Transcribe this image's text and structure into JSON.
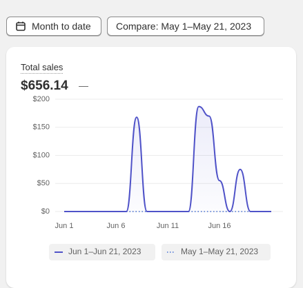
{
  "toolbar": {
    "date_button": "Month to date",
    "compare_button": "Compare: May 1–May 21, 2023"
  },
  "card": {
    "metric_label": "Total sales",
    "metric_value": "$656.14",
    "metric_change": "—"
  },
  "chart_data": {
    "type": "line",
    "categories": [
      "Jun 1",
      null,
      null,
      null,
      null,
      "Jun 6",
      null,
      null,
      null,
      null,
      "Jun 11",
      null,
      null,
      null,
      null,
      "Jun 16",
      null,
      null,
      null,
      null,
      null
    ],
    "series": [
      {
        "name": "Jun 1–Jun 21, 2023",
        "color": "#4f52c8",
        "style": "solid",
        "values": [
          0,
          0,
          0,
          0,
          0,
          0,
          0,
          168,
          0,
          0,
          0,
          0,
          0,
          187,
          170,
          55,
          0,
          75,
          0,
          0,
          0
        ]
      },
      {
        "name": "May 1–May 21, 2023",
        "color": "#6f8fdc",
        "style": "dotted",
        "values": [
          0,
          0,
          0,
          0,
          0,
          0,
          0,
          0,
          0,
          0,
          0,
          0,
          0,
          0,
          0,
          0,
          0,
          0,
          0,
          0,
          0
        ]
      }
    ],
    "ylim": [
      0,
      200
    ],
    "yticks": [
      {
        "value": 0,
        "label": "$0"
      },
      {
        "value": 50,
        "label": "$50"
      },
      {
        "value": 100,
        "label": "$100"
      },
      {
        "value": 150,
        "label": "$150"
      },
      {
        "value": 200,
        "label": "$200"
      }
    ],
    "grid": true
  }
}
